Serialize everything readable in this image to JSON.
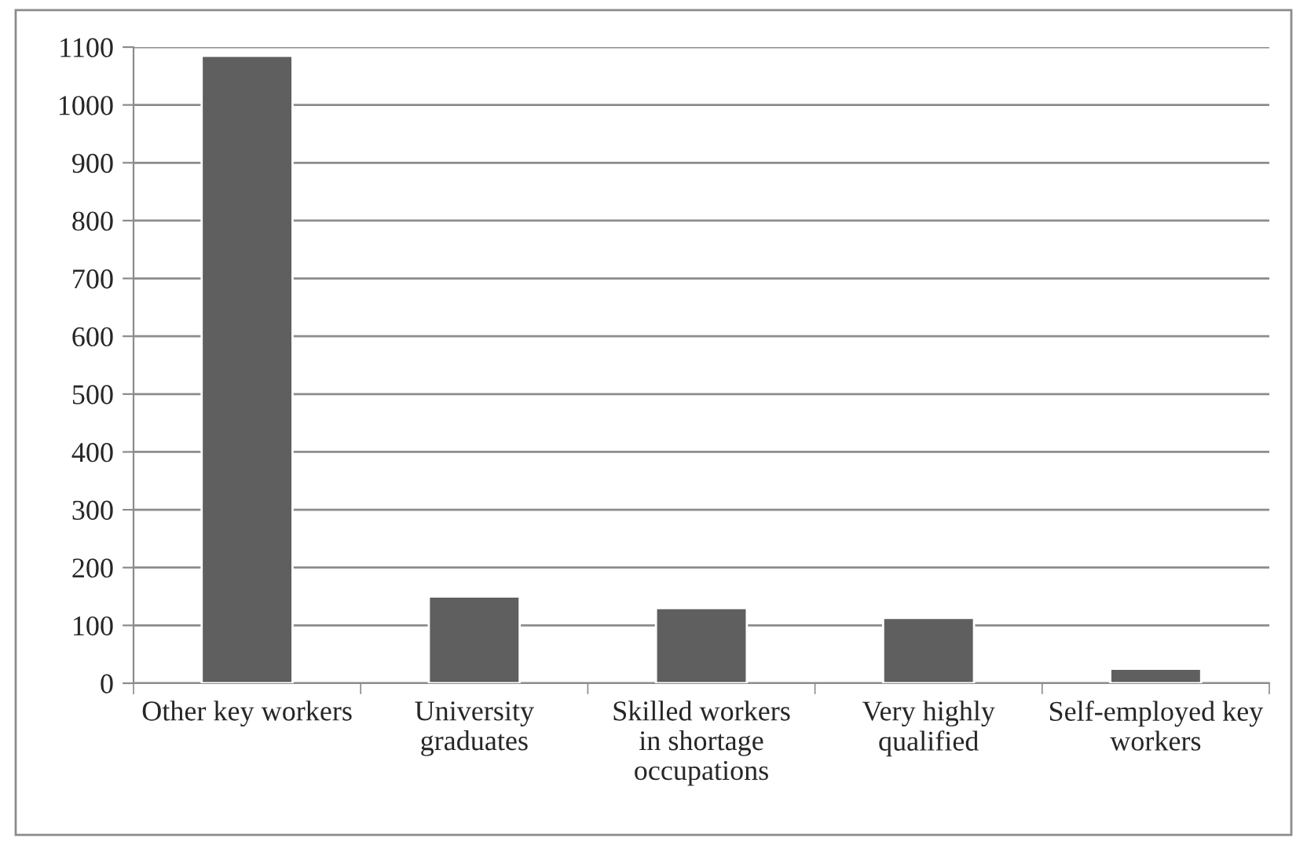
{
  "chart_data": {
    "type": "bar",
    "categories": [
      "Other key workers",
      "University graduates",
      "Skilled workers in shortage occupations",
      "Very highly qualified",
      "Self-employed key workers"
    ],
    "values": [
      1085,
      150,
      130,
      113,
      25
    ],
    "color": "#5f5f5f",
    "ylim": [
      0,
      1100
    ],
    "yticks": [
      0,
      100,
      200,
      300,
      400,
      500,
      600,
      700,
      800,
      900,
      1000,
      1100
    ],
    "grid": "y",
    "legend": false
  }
}
